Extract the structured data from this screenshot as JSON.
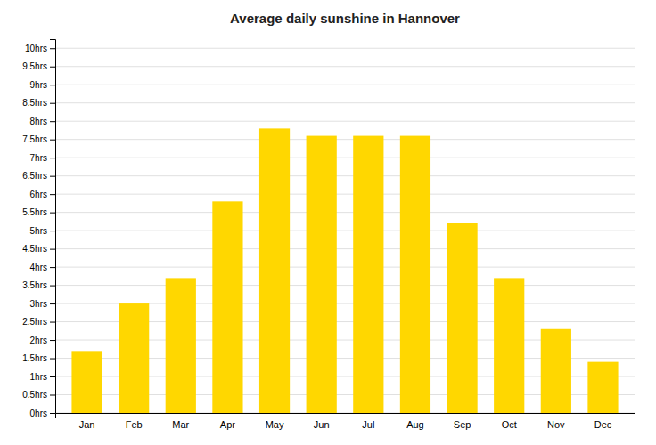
{
  "chart_data": {
    "type": "bar",
    "title": "Average daily sunshine in Hannover",
    "categories": [
      "Jan",
      "Feb",
      "Mar",
      "Apr",
      "May",
      "Jun",
      "Jul",
      "Aug",
      "Sep",
      "Oct",
      "Nov",
      "Dec"
    ],
    "values": [
      1.7,
      3.0,
      3.7,
      5.8,
      7.8,
      7.6,
      7.6,
      7.6,
      5.2,
      3.7,
      2.3,
      1.4
    ],
    "color": "#FFD700",
    "ylim": [
      0,
      10.25
    ],
    "yticks": [
      {
        "value": 0,
        "label": "0hrs"
      },
      {
        "value": 0.5,
        "label": "0.5hrs"
      },
      {
        "value": 1.0,
        "label": "1hrs"
      },
      {
        "value": 1.5,
        "label": "1.5hrs"
      },
      {
        "value": 2.0,
        "label": "2hrs"
      },
      {
        "value": 2.5,
        "label": "2.5hrs"
      },
      {
        "value": 3.0,
        "label": "3hrs"
      },
      {
        "value": 3.5,
        "label": "3.5hrs"
      },
      {
        "value": 4.0,
        "label": "4hrs"
      },
      {
        "value": 4.5,
        "label": "4.5hrs"
      },
      {
        "value": 5.0,
        "label": "5hrs"
      },
      {
        "value": 5.5,
        "label": "5.5hrs"
      },
      {
        "value": 6.0,
        "label": "6hrs"
      },
      {
        "value": 6.5,
        "label": "6.5hrs"
      },
      {
        "value": 7.0,
        "label": "7hrs"
      },
      {
        "value": 7.5,
        "label": "7.5hrs"
      },
      {
        "value": 8.0,
        "label": "8hrs"
      },
      {
        "value": 8.5,
        "label": "8.5hrs"
      },
      {
        "value": 9.0,
        "label": "9hrs"
      },
      {
        "value": 9.5,
        "label": "9.5hrs"
      },
      {
        "value": 10.0,
        "label": "10hrs"
      }
    ],
    "grid": true
  }
}
